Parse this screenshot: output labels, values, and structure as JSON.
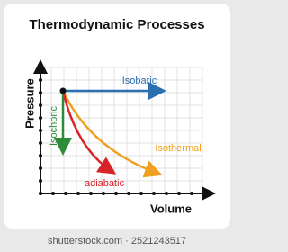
{
  "title": "Thermodynamic Processes",
  "axes": {
    "y_label": "Pressure",
    "x_label": "Volume"
  },
  "processes": [
    {
      "label": "Isobaric"
    },
    {
      "label": "Isothermal"
    },
    {
      "label": "Isochoric"
    },
    {
      "label": "adiabatic"
    }
  ],
  "footer": "shutterstock.com · 2521243517"
}
